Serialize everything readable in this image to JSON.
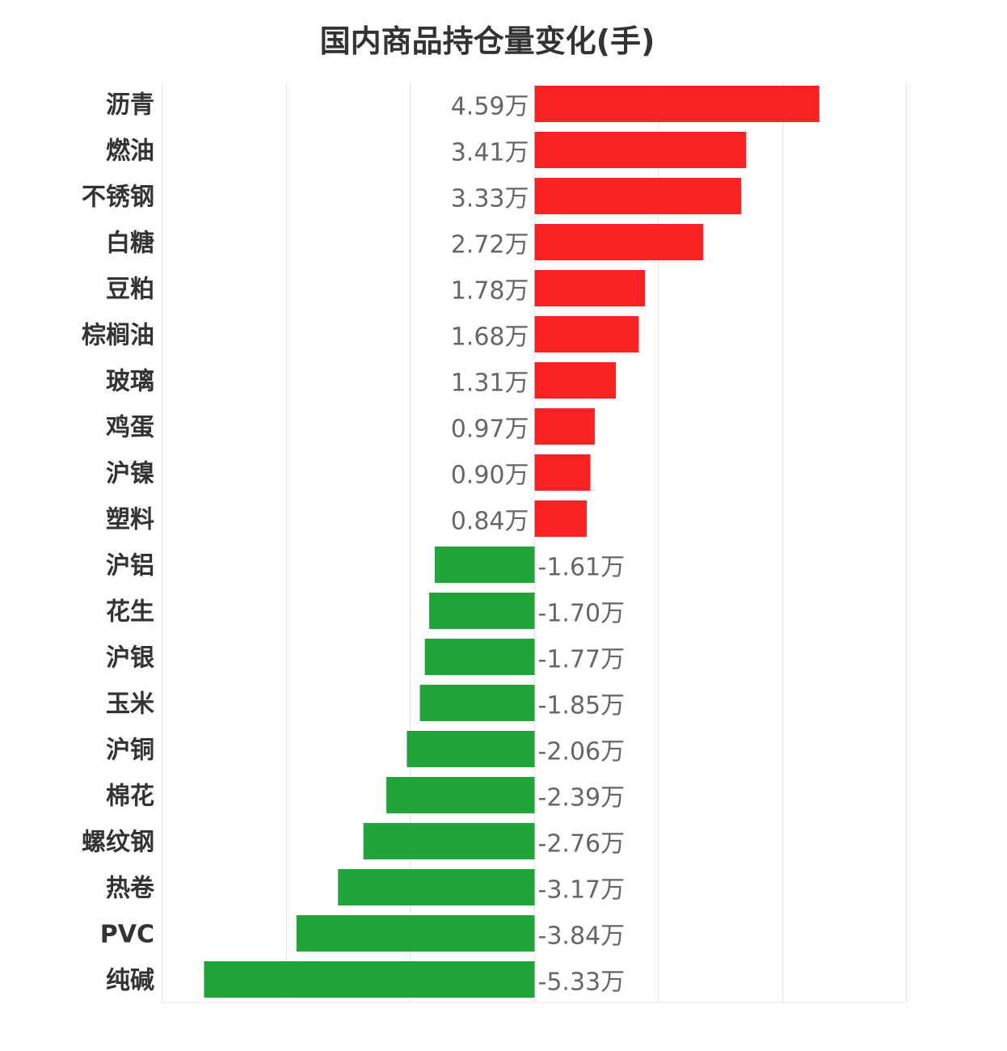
{
  "chart_data": {
    "type": "bar",
    "orientation": "horizontal",
    "title": "国内商品持仓量变化(手)",
    "unit_suffix": "万",
    "categories": [
      "沥青",
      "燃油",
      "不锈钢",
      "白糖",
      "豆粕",
      "棕榈油",
      "玻璃",
      "鸡蛋",
      "沪镍",
      "塑料",
      "沪铝",
      "花生",
      "沪银",
      "玉米",
      "沪铜",
      "棉花",
      "螺纹钢",
      "热卷",
      "PVC",
      "纯碱"
    ],
    "values": [
      4.59,
      3.41,
      3.33,
      2.72,
      1.78,
      1.68,
      1.31,
      0.97,
      0.9,
      0.84,
      -1.61,
      -1.7,
      -1.77,
      -1.85,
      -2.06,
      -2.39,
      -2.76,
      -3.17,
      -3.84,
      -5.33
    ],
    "value_labels": [
      "4.59万",
      "3.41万",
      "3.33万",
      "2.72万",
      "1.78万",
      "1.68万",
      "1.31万",
      "0.97万",
      "0.90万",
      "0.84万",
      "-1.61万",
      "-1.70万",
      "-1.77万",
      "-1.85万",
      "-2.06万",
      "-2.39万",
      "-2.76万",
      "-3.17万",
      "-3.84万",
      "-5.33万"
    ],
    "xlim": [
      -6,
      6
    ],
    "grid_step": 2,
    "grid": true,
    "colors": {
      "positive": "#fa2323",
      "negative": "#21a43a",
      "grid": "#e6e6e6",
      "label": "#333333",
      "value": "#666666"
    }
  }
}
